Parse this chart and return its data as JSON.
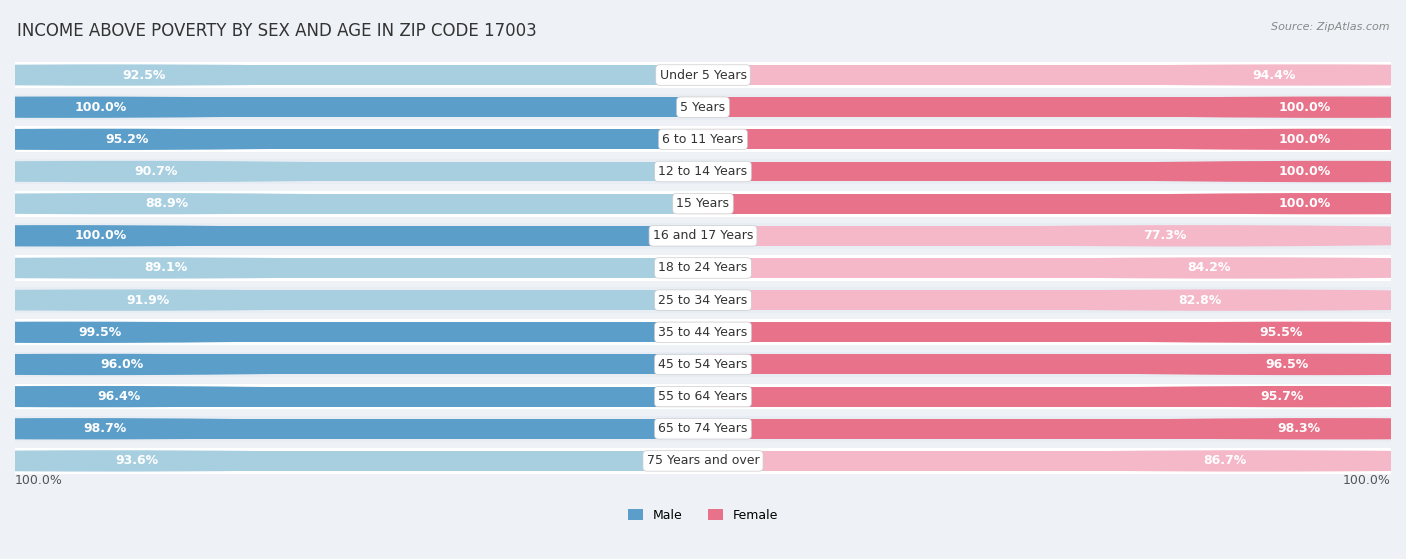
{
  "title": "INCOME ABOVE POVERTY BY SEX AND AGE IN ZIP CODE 17003",
  "source": "Source: ZipAtlas.com",
  "categories": [
    "Under 5 Years",
    "5 Years",
    "6 to 11 Years",
    "12 to 14 Years",
    "15 Years",
    "16 and 17 Years",
    "18 to 24 Years",
    "25 to 34 Years",
    "35 to 44 Years",
    "45 to 54 Years",
    "55 to 64 Years",
    "65 to 74 Years",
    "75 Years and over"
  ],
  "male_values": [
    92.5,
    100.0,
    95.2,
    90.7,
    88.9,
    100.0,
    89.1,
    91.9,
    99.5,
    96.0,
    96.4,
    98.7,
    93.6
  ],
  "female_values": [
    94.4,
    100.0,
    100.0,
    100.0,
    100.0,
    77.3,
    84.2,
    82.8,
    95.5,
    96.5,
    95.7,
    98.3,
    86.7
  ],
  "male_color_dark": "#5b9ec9",
  "male_color_light": "#a8cfe0",
  "female_color_dark": "#e8728a",
  "female_color_light": "#f4b8c8",
  "male_label": "Male",
  "female_label": "Female",
  "bg_color": "#eef2f7",
  "row_color_even": "#ffffff",
  "row_color_odd": "#e8edf4",
  "bar_height": 0.62,
  "x_axis_label_left": "100.0%",
  "x_axis_label_right": "100.0%",
  "title_fontsize": 12,
  "source_fontsize": 8,
  "label_fontsize": 9,
  "category_fontsize": 9,
  "value_fontsize": 9
}
